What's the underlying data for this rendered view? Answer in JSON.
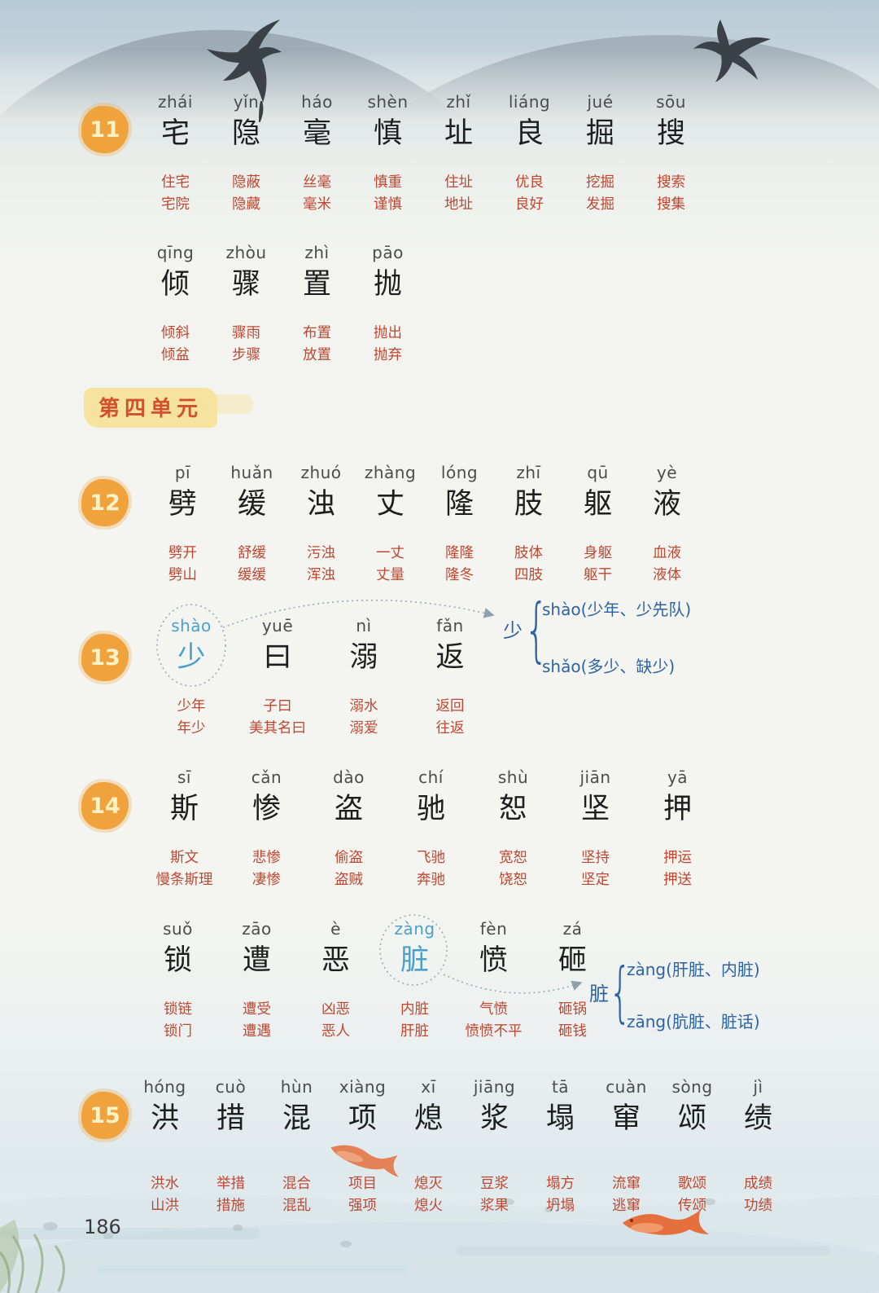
{
  "page_number": "186",
  "unit_header": "第四单元",
  "colors": {
    "badge_orange": "#f0a23c",
    "word_red": "#bf4731",
    "accent_blue_light": "#4aa0cb",
    "annotation_blue": "#2e63a1",
    "header_band_yellow": "#f7e3a0",
    "header_text_red": "#d2512c"
  },
  "decorations": {
    "top": [
      "mountains",
      "swallow-left",
      "swallow-right"
    ],
    "bottom": [
      "water-wash",
      "grass",
      "pebbles",
      "goldfish-small",
      "goldfish-large"
    ]
  },
  "annotations": {
    "shao": {
      "target": "少",
      "brace": "{",
      "line1": "shào(少年、少先队)",
      "line2": "shǎo(多少、缺少)"
    },
    "zang": {
      "target": "脏",
      "brace": "{",
      "line1": "zàng(肝脏、内脏)",
      "line2": "zāng(肮脏、脏话)"
    }
  },
  "lessons": [
    {
      "number": "11",
      "groups": [
        [
          {
            "pinyin": "zhái",
            "hanzi": "宅",
            "word1": "住宅",
            "word2": "宅院"
          },
          {
            "pinyin": "yǐn",
            "hanzi": "隐",
            "word1": "隐蔽",
            "word2": "隐藏"
          },
          {
            "pinyin": "háo",
            "hanzi": "毫",
            "word1": "丝毫",
            "word2": "毫米"
          },
          {
            "pinyin": "shèn",
            "hanzi": "慎",
            "word1": "慎重",
            "word2": "谨慎"
          },
          {
            "pinyin": "zhǐ",
            "hanzi": "址",
            "word1": "住址",
            "word2": "地址"
          },
          {
            "pinyin": "liáng",
            "hanzi": "良",
            "word1": "优良",
            "word2": "良好"
          },
          {
            "pinyin": "jué",
            "hanzi": "掘",
            "word1": "挖掘",
            "word2": "发掘"
          },
          {
            "pinyin": "sōu",
            "hanzi": "搜",
            "word1": "搜索",
            "word2": "搜集"
          }
        ],
        [
          {
            "pinyin": "qīng",
            "hanzi": "倾",
            "word1": "倾斜",
            "word2": "倾盆"
          },
          {
            "pinyin": "zhòu",
            "hanzi": "骤",
            "word1": "骤雨",
            "word2": "步骤"
          },
          {
            "pinyin": "zhì",
            "hanzi": "置",
            "word1": "布置",
            "word2": "放置"
          },
          {
            "pinyin": "pāo",
            "hanzi": "抛",
            "word1": "抛出",
            "word2": "抛弃"
          }
        ]
      ]
    },
    {
      "number": "12",
      "groups": [
        [
          {
            "pinyin": "pī",
            "hanzi": "劈",
            "word1": "劈开",
            "word2": "劈山"
          },
          {
            "pinyin": "huǎn",
            "hanzi": "缓",
            "word1": "舒缓",
            "word2": "缓缓"
          },
          {
            "pinyin": "zhuó",
            "hanzi": "浊",
            "word1": "污浊",
            "word2": "浑浊"
          },
          {
            "pinyin": "zhàng",
            "hanzi": "丈",
            "word1": "一丈",
            "word2": "丈量"
          },
          {
            "pinyin": "lóng",
            "hanzi": "隆",
            "word1": "隆隆",
            "word2": "隆冬"
          },
          {
            "pinyin": "zhī",
            "hanzi": "肢",
            "word1": "肢体",
            "word2": "四肢"
          },
          {
            "pinyin": "qū",
            "hanzi": "躯",
            "word1": "身躯",
            "word2": "躯干"
          },
          {
            "pinyin": "yè",
            "hanzi": "液",
            "word1": "血液",
            "word2": "液体"
          }
        ]
      ]
    },
    {
      "number": "13",
      "groups": [
        [
          {
            "pinyin": "shào",
            "hanzi": "少",
            "word1": "少年",
            "word2": "年少",
            "accent": true
          },
          {
            "pinyin": "yuē",
            "hanzi": "曰",
            "word1": "子曰",
            "word2": "美其名曰"
          },
          {
            "pinyin": "nì",
            "hanzi": "溺",
            "word1": "溺水",
            "word2": "溺爱"
          },
          {
            "pinyin": "fǎn",
            "hanzi": "返",
            "word1": "返回",
            "word2": "往返"
          }
        ]
      ]
    },
    {
      "number": "14",
      "groups": [
        [
          {
            "pinyin": "sī",
            "hanzi": "斯",
            "word1": "斯文",
            "word2": "慢条斯理"
          },
          {
            "pinyin": "cǎn",
            "hanzi": "惨",
            "word1": "悲惨",
            "word2": "凄惨"
          },
          {
            "pinyin": "dào",
            "hanzi": "盗",
            "word1": "偷盗",
            "word2": "盗贼"
          },
          {
            "pinyin": "chí",
            "hanzi": "驰",
            "word1": "飞驰",
            "word2": "奔驰"
          },
          {
            "pinyin": "shù",
            "hanzi": "恕",
            "word1": "宽恕",
            "word2": "饶恕"
          },
          {
            "pinyin": "jiān",
            "hanzi": "坚",
            "word1": "坚持",
            "word2": "坚定"
          },
          {
            "pinyin": "yā",
            "hanzi": "押",
            "word1": "押运",
            "word2": "押送"
          }
        ],
        [
          {
            "pinyin": "suǒ",
            "hanzi": "锁",
            "word1": "锁链",
            "word2": "锁门"
          },
          {
            "pinyin": "zāo",
            "hanzi": "遭",
            "word1": "遭受",
            "word2": "遭遇"
          },
          {
            "pinyin": "è",
            "hanzi": "恶",
            "word1": "凶恶",
            "word2": "恶人"
          },
          {
            "pinyin": "zàng",
            "hanzi": "脏",
            "word1": "内脏",
            "word2": "肝脏",
            "accent": true
          },
          {
            "pinyin": "fèn",
            "hanzi": "愤",
            "word1": "气愤",
            "word2": "愤愤不平"
          },
          {
            "pinyin": "zá",
            "hanzi": "砸",
            "word1": "砸锅",
            "word2": "砸钱"
          }
        ]
      ]
    },
    {
      "number": "15",
      "groups": [
        [
          {
            "pinyin": "hóng",
            "hanzi": "洪",
            "word1": "洪水",
            "word2": "山洪"
          },
          {
            "pinyin": "cuò",
            "hanzi": "措",
            "word1": "举措",
            "word2": "措施"
          },
          {
            "pinyin": "hùn",
            "hanzi": "混",
            "word1": "混合",
            "word2": "混乱"
          },
          {
            "pinyin": "xiàng",
            "hanzi": "项",
            "word1": "项目",
            "word2": "强项"
          },
          {
            "pinyin": "xī",
            "hanzi": "熄",
            "word1": "熄灭",
            "word2": "熄火"
          },
          {
            "pinyin": "jiāng",
            "hanzi": "浆",
            "word1": "豆浆",
            "word2": "浆果"
          },
          {
            "pinyin": "tā",
            "hanzi": "塌",
            "word1": "塌方",
            "word2": "坍塌"
          },
          {
            "pinyin": "cuàn",
            "hanzi": "窜",
            "word1": "流窜",
            "word2": "逃窜"
          },
          {
            "pinyin": "sòng",
            "hanzi": "颂",
            "word1": "歌颂",
            "word2": "传颂"
          },
          {
            "pinyin": "jì",
            "hanzi": "绩",
            "word1": "成绩",
            "word2": "功绩"
          }
        ]
      ]
    }
  ]
}
